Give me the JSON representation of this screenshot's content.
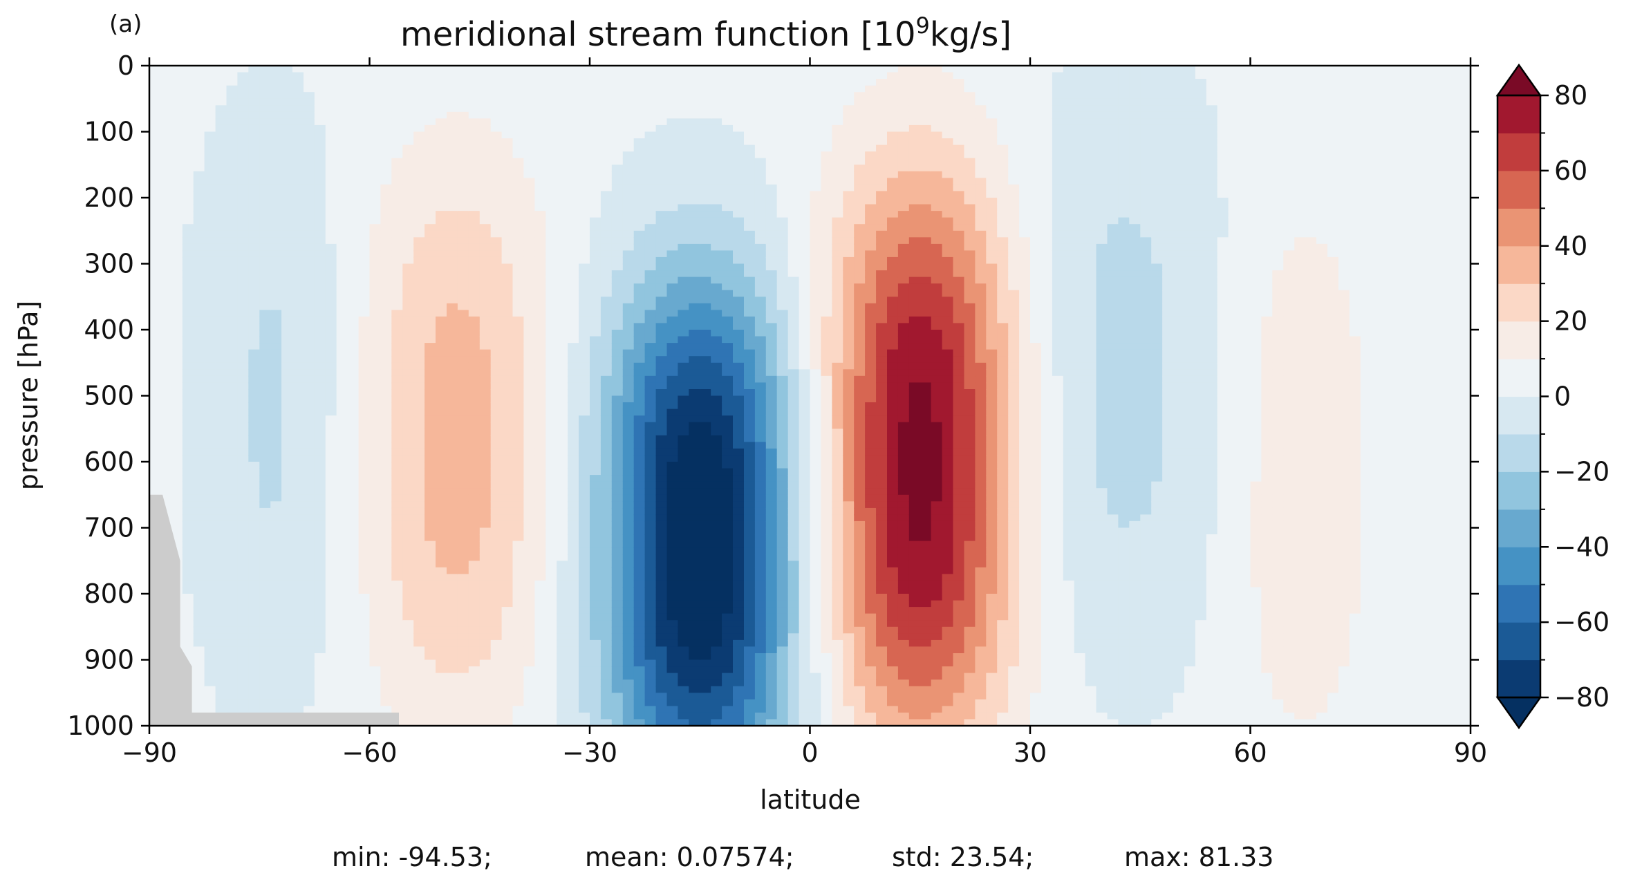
{
  "chart_data": {
    "type": "heatmap",
    "panel_label": "(a)",
    "title_main": "meridional stream function [10",
    "title_sup": "9",
    "title_tail": "kg/s]",
    "xlabel": "latitude",
    "ylabel": "pressure [hPa]",
    "xlim": [
      -90,
      90
    ],
    "ylim": [
      1000,
      0
    ],
    "x_ticks": [
      "−90",
      "−60",
      "−30",
      "0",
      "30",
      "60",
      "90"
    ],
    "x_tick_values": [
      -90,
      -60,
      -30,
      0,
      30,
      60,
      90
    ],
    "y_ticks": [
      "0",
      "100",
      "200",
      "300",
      "400",
      "500",
      "600",
      "700",
      "800",
      "900",
      "1000"
    ],
    "y_tick_values": [
      0,
      100,
      200,
      300,
      400,
      500,
      600,
      700,
      800,
      900,
      1000
    ],
    "colorbar": {
      "levels": [
        -80,
        -70,
        -60,
        -50,
        -40,
        -30,
        -20,
        -10,
        0,
        10,
        20,
        30,
        40,
        50,
        60,
        70,
        80
      ],
      "tick_labels": [
        "−80",
        "−60",
        "−40",
        "−20",
        "0",
        "20",
        "40",
        "60",
        "80"
      ],
      "tick_values": [
        -80,
        -60,
        -40,
        -20,
        0,
        20,
        40,
        60,
        80
      ],
      "extend": "both",
      "colormap": "RdBu_r"
    },
    "features": [
      {
        "sign": "positive",
        "lat_center": 15,
        "p_center": 600,
        "lat_halfwidth": 9,
        "peak": 81.33
      },
      {
        "sign": "negative",
        "lat_center": -15,
        "p_center": 720,
        "lat_halfwidth": 9,
        "peak": -94.53
      },
      {
        "sign": "positive",
        "lat_center": -48,
        "p_center": 570,
        "lat_halfwidth": 9,
        "peak": 32
      },
      {
        "sign": "negative",
        "lat_center": 42,
        "p_center": 470,
        "lat_halfwidth": 10,
        "peak": -16
      },
      {
        "sign": "negative",
        "lat_center": -73,
        "p_center": 520,
        "lat_halfwidth": 7,
        "peak": -14
      },
      {
        "sign": "positive",
        "lat_center": 67,
        "p_center": 620,
        "lat_halfwidth": 7,
        "peak": 15
      }
    ],
    "masked_region": "topography near the South Pole below about 650 hPa (gray)",
    "stats": {
      "min": "min: -94.53;",
      "mean": "mean: 0.07574;",
      "std": "std: 23.54;",
      "max": "max: 81.33"
    },
    "colors": {
      "mask": "#cccccc",
      "axes": "#000000"
    }
  }
}
